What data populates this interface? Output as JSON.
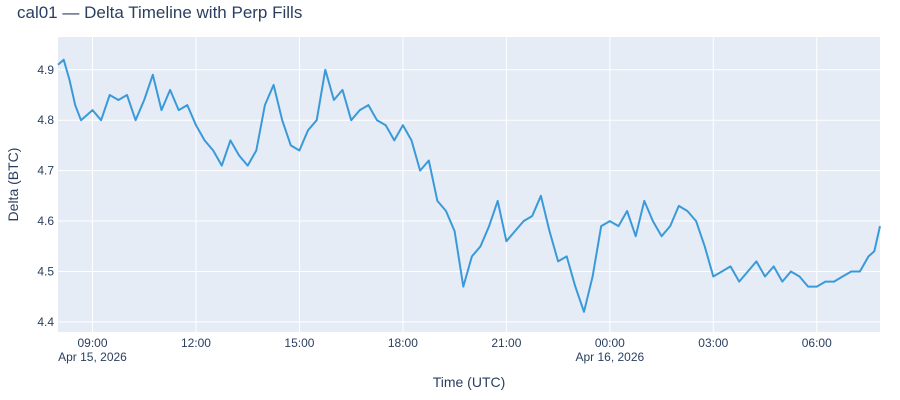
{
  "chart_data": {
    "type": "line",
    "title": "cal01 — Delta Timeline with Perp Fills",
    "xlabel": "Time (UTC)",
    "ylabel": "Delta (BTC)",
    "x_axis_type": "datetime",
    "x_range": [
      "2026-04-15T08:00",
      "2026-04-16T07:50"
    ],
    "ylim": [
      4.38,
      4.965
    ],
    "x_ticks": [
      {
        "value": "2026-04-15T09:00",
        "label": "09:00",
        "sublabel": "Apr 15, 2026"
      },
      {
        "value": "2026-04-15T12:00",
        "label": "12:00",
        "sublabel": ""
      },
      {
        "value": "2026-04-15T15:00",
        "label": "15:00",
        "sublabel": ""
      },
      {
        "value": "2026-04-15T18:00",
        "label": "18:00",
        "sublabel": ""
      },
      {
        "value": "2026-04-15T21:00",
        "label": "21:00",
        "sublabel": ""
      },
      {
        "value": "2026-04-16T00:00",
        "label": "00:00",
        "sublabel": "Apr 16, 2026"
      },
      {
        "value": "2026-04-16T03:00",
        "label": "03:00",
        "sublabel": ""
      },
      {
        "value": "2026-04-16T06:00",
        "label": "06:00",
        "sublabel": ""
      }
    ],
    "y_ticks": [
      4.4,
      4.5,
      4.6,
      4.7,
      4.8,
      4.9
    ],
    "y_tick_labels": [
      "4.4",
      "4.5",
      "4.6",
      "4.7",
      "4.8",
      "4.9"
    ],
    "grid": true,
    "legend": "none",
    "series": [
      {
        "color": "#3a9ad9",
        "x": [
          "2026-04-15T08:00",
          "2026-04-15T08:10",
          "2026-04-15T08:20",
          "2026-04-15T08:30",
          "2026-04-15T08:40",
          "2026-04-15T08:50",
          "2026-04-15T09:00",
          "2026-04-15T09:15",
          "2026-04-15T09:30",
          "2026-04-15T09:45",
          "2026-04-15T10:00",
          "2026-04-15T10:15",
          "2026-04-15T10:30",
          "2026-04-15T10:45",
          "2026-04-15T11:00",
          "2026-04-15T11:15",
          "2026-04-15T11:30",
          "2026-04-15T11:45",
          "2026-04-15T12:00",
          "2026-04-15T12:15",
          "2026-04-15T12:30",
          "2026-04-15T12:45",
          "2026-04-15T13:00",
          "2026-04-15T13:15",
          "2026-04-15T13:30",
          "2026-04-15T13:45",
          "2026-04-15T14:00",
          "2026-04-15T14:15",
          "2026-04-15T14:30",
          "2026-04-15T14:45",
          "2026-04-15T15:00",
          "2026-04-15T15:15",
          "2026-04-15T15:30",
          "2026-04-15T15:45",
          "2026-04-15T16:00",
          "2026-04-15T16:15",
          "2026-04-15T16:30",
          "2026-04-15T16:45",
          "2026-04-15T17:00",
          "2026-04-15T17:15",
          "2026-04-15T17:30",
          "2026-04-15T17:45",
          "2026-04-15T18:00",
          "2026-04-15T18:15",
          "2026-04-15T18:30",
          "2026-04-15T18:45",
          "2026-04-15T19:00",
          "2026-04-15T19:15",
          "2026-04-15T19:30",
          "2026-04-15T19:45",
          "2026-04-15T20:00",
          "2026-04-15T20:15",
          "2026-04-15T20:30",
          "2026-04-15T20:45",
          "2026-04-15T21:00",
          "2026-04-15T21:15",
          "2026-04-15T21:30",
          "2026-04-15T21:45",
          "2026-04-15T22:00",
          "2026-04-15T22:15",
          "2026-04-15T22:30",
          "2026-04-15T22:45",
          "2026-04-15T23:00",
          "2026-04-15T23:15",
          "2026-04-15T23:30",
          "2026-04-15T23:45",
          "2026-04-16T00:00",
          "2026-04-16T00:15",
          "2026-04-16T00:30",
          "2026-04-16T00:45",
          "2026-04-16T01:00",
          "2026-04-16T01:15",
          "2026-04-16T01:30",
          "2026-04-16T01:45",
          "2026-04-16T02:00",
          "2026-04-16T02:15",
          "2026-04-16T02:30",
          "2026-04-16T02:45",
          "2026-04-16T03:00",
          "2026-04-16T03:15",
          "2026-04-16T03:30",
          "2026-04-16T03:45",
          "2026-04-16T04:00",
          "2026-04-16T04:15",
          "2026-04-16T04:30",
          "2026-04-16T04:45",
          "2026-04-16T05:00",
          "2026-04-16T05:15",
          "2026-04-16T05:30",
          "2026-04-16T05:45",
          "2026-04-16T06:00",
          "2026-04-16T06:15",
          "2026-04-16T06:30",
          "2026-04-16T06:45",
          "2026-04-16T07:00",
          "2026-04-16T07:15",
          "2026-04-16T07:30",
          "2026-04-16T07:40",
          "2026-04-16T07:50"
        ],
        "y": [
          4.91,
          4.92,
          4.88,
          4.83,
          4.8,
          4.81,
          4.82,
          4.8,
          4.85,
          4.84,
          4.85,
          4.8,
          4.84,
          4.89,
          4.82,
          4.86,
          4.82,
          4.83,
          4.79,
          4.76,
          4.74,
          4.71,
          4.76,
          4.73,
          4.71,
          4.74,
          4.83,
          4.87,
          4.8,
          4.75,
          4.74,
          4.78,
          4.8,
          4.9,
          4.84,
          4.86,
          4.8,
          4.82,
          4.83,
          4.8,
          4.79,
          4.76,
          4.79,
          4.76,
          4.7,
          4.72,
          4.64,
          4.62,
          4.58,
          4.47,
          4.53,
          4.55,
          4.59,
          4.64,
          4.56,
          4.58,
          4.6,
          4.61,
          4.65,
          4.58,
          4.52,
          4.53,
          4.47,
          4.42,
          4.49,
          4.59,
          4.6,
          4.59,
          4.62,
          4.57,
          4.64,
          4.6,
          4.57,
          4.59,
          4.63,
          4.62,
          4.6,
          4.55,
          4.49,
          4.5,
          4.51,
          4.48,
          4.5,
          4.52,
          4.49,
          4.51,
          4.48,
          4.5,
          4.49,
          4.47,
          4.47,
          4.48,
          4.48,
          4.49,
          4.5,
          4.5,
          4.53,
          4.54,
          4.59
        ]
      }
    ]
  }
}
